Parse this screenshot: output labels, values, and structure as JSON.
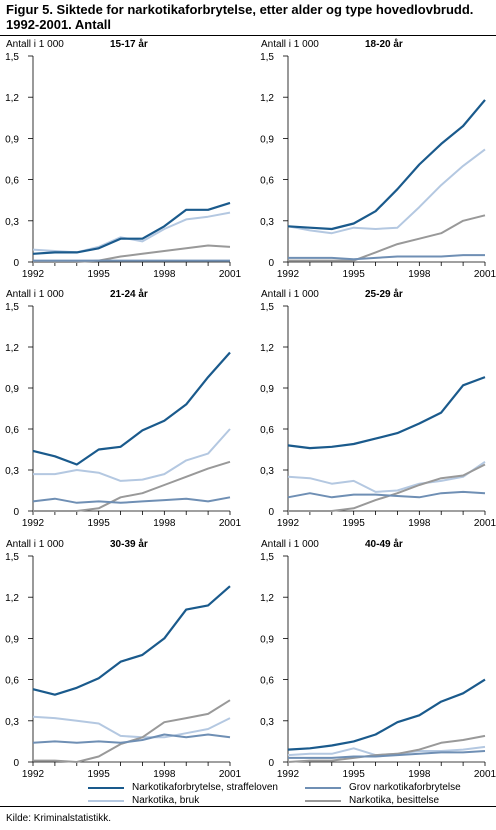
{
  "title": "Figur 5. Siktede for narkotikaforbrytelse, etter alder og type hovedlovbrudd. 1992-2001. Antall",
  "source": "Kilde: Kriminalstatistikk.",
  "colors": {
    "straffeloven": "#1a5a8c",
    "grov": "#6f8fb4",
    "bruk": "#b4c8e1",
    "besittelse": "#999999"
  },
  "legend": [
    {
      "key": "straffeloven",
      "label": "Narkotikaforbrytelse, straffeloven"
    },
    {
      "key": "grov",
      "label": "Grov narkotikaforbrytelse"
    },
    {
      "key": "bruk",
      "label": "Narkotika, bruk"
    },
    {
      "key": "besittelse",
      "label": "Narkotika, besittelse"
    }
  ],
  "chart_data": [
    {
      "type": "line",
      "title": "15-17 år",
      "ylabel": "Antall i 1 000",
      "x": [
        1992,
        1993,
        1994,
        1995,
        1996,
        1997,
        1998,
        1999,
        2000,
        2001
      ],
      "xticks": [
        "1992",
        "1995",
        "1998",
        "2001"
      ],
      "yticks": [
        "0",
        "0,3",
        "0,6",
        "0,9",
        "1,2",
        "1,5"
      ],
      "ylim": [
        0,
        1.5
      ],
      "series": [
        {
          "key": "straffeloven",
          "name": "Narkotikaforbrytelse, straffeloven",
          "values": [
            0.06,
            0.07,
            0.07,
            0.1,
            0.17,
            0.17,
            0.26,
            0.38,
            0.38,
            0.43
          ]
        },
        {
          "key": "grov",
          "name": "Grov narkotikaforbrytelse",
          "values": [
            0.01,
            0.01,
            0.01,
            0.01,
            0.01,
            0.01,
            0.01,
            0.01,
            0.01,
            0.01
          ]
        },
        {
          "key": "bruk",
          "name": "Narkotika, bruk",
          "values": [
            0.09,
            0.08,
            0.07,
            0.11,
            0.18,
            0.15,
            0.24,
            0.31,
            0.33,
            0.36
          ]
        },
        {
          "key": "besittelse",
          "name": "Narkotika, besittelse",
          "values": [
            0.0,
            0.0,
            0.0,
            0.01,
            0.04,
            0.06,
            0.08,
            0.1,
            0.12,
            0.11
          ]
        }
      ]
    },
    {
      "type": "line",
      "title": "18-20 år",
      "ylabel": "Antall i 1 000",
      "x": [
        1992,
        1993,
        1994,
        1995,
        1996,
        1997,
        1998,
        1999,
        2000,
        2001
      ],
      "xticks": [
        "1992",
        "1995",
        "1998",
        "2001"
      ],
      "yticks": [
        "0",
        "0,3",
        "0,6",
        "0,9",
        "1,2",
        "1,5"
      ],
      "ylim": [
        0,
        1.5
      ],
      "series": [
        {
          "key": "straffeloven",
          "name": "Narkotikaforbrytelse, straffeloven",
          "values": [
            0.26,
            0.25,
            0.24,
            0.28,
            0.37,
            0.53,
            0.71,
            0.86,
            0.99,
            1.18
          ]
        },
        {
          "key": "grov",
          "name": "Grov narkotikaforbrytelse",
          "values": [
            0.03,
            0.03,
            0.03,
            0.02,
            0.03,
            0.04,
            0.04,
            0.04,
            0.05,
            0.05
          ]
        },
        {
          "key": "bruk",
          "name": "Narkotika, bruk",
          "values": [
            0.26,
            0.23,
            0.21,
            0.25,
            0.24,
            0.25,
            0.4,
            0.56,
            0.7,
            0.82
          ]
        },
        {
          "key": "besittelse",
          "name": "Narkotika, besittelse",
          "values": [
            0.01,
            0.01,
            0.01,
            0.01,
            0.07,
            0.13,
            0.17,
            0.21,
            0.3,
            0.34
          ]
        }
      ]
    },
    {
      "type": "line",
      "title": "21-24 år",
      "ylabel": "Antall i 1 000",
      "x": [
        1992,
        1993,
        1994,
        1995,
        1996,
        1997,
        1998,
        1999,
        2000,
        2001
      ],
      "xticks": [
        "1992",
        "1995",
        "1998",
        "2001"
      ],
      "yticks": [
        "0",
        "0,3",
        "0,6",
        "0,9",
        "1,2",
        "1,5"
      ],
      "ylim": [
        0,
        1.5
      ],
      "series": [
        {
          "key": "straffeloven",
          "name": "Narkotikaforbrytelse, straffeloven",
          "values": [
            0.44,
            0.4,
            0.34,
            0.45,
            0.47,
            0.59,
            0.66,
            0.78,
            0.98,
            1.16
          ]
        },
        {
          "key": "grov",
          "name": "Grov narkotikaforbrytelse",
          "values": [
            0.07,
            0.09,
            0.06,
            0.07,
            0.06,
            0.07,
            0.08,
            0.09,
            0.07,
            0.1
          ]
        },
        {
          "key": "bruk",
          "name": "Narkotika, bruk",
          "values": [
            0.27,
            0.27,
            0.3,
            0.28,
            0.22,
            0.23,
            0.27,
            0.37,
            0.42,
            0.6
          ]
        },
        {
          "key": "besittelse",
          "name": "Narkotika, besittelse",
          "values": [
            0.0,
            0.0,
            0.0,
            0.02,
            0.1,
            0.13,
            0.19,
            0.25,
            0.31,
            0.36
          ]
        }
      ]
    },
    {
      "type": "line",
      "title": "25-29 år",
      "ylabel": "Antall i 1 000",
      "x": [
        1992,
        1993,
        1994,
        1995,
        1996,
        1997,
        1998,
        1999,
        2000,
        2001
      ],
      "xticks": [
        "1992",
        "1995",
        "1998",
        "2001"
      ],
      "yticks": [
        "0",
        "0,3",
        "0,6",
        "0,9",
        "1,2",
        "1,5"
      ],
      "ylim": [
        0,
        1.5
      ],
      "series": [
        {
          "key": "straffeloven",
          "name": "Narkotikaforbrytelse, straffeloven",
          "values": [
            0.48,
            0.46,
            0.47,
            0.49,
            0.53,
            0.57,
            0.64,
            0.72,
            0.92,
            0.98
          ]
        },
        {
          "key": "grov",
          "name": "Grov narkotikaforbrytelse",
          "values": [
            0.1,
            0.13,
            0.1,
            0.12,
            0.12,
            0.11,
            0.1,
            0.13,
            0.14,
            0.13
          ]
        },
        {
          "key": "bruk",
          "name": "Narkotika, bruk",
          "values": [
            0.25,
            0.24,
            0.2,
            0.22,
            0.14,
            0.15,
            0.2,
            0.22,
            0.25,
            0.36
          ]
        },
        {
          "key": "besittelse",
          "name": "Narkotika, besittelse",
          "values": [
            0.0,
            0.0,
            0.0,
            0.02,
            0.08,
            0.13,
            0.19,
            0.24,
            0.26,
            0.34
          ]
        }
      ]
    },
    {
      "type": "line",
      "title": "30-39 år",
      "ylabel": "Antall i 1 000",
      "x": [
        1992,
        1993,
        1994,
        1995,
        1996,
        1997,
        1998,
        1999,
        2000,
        2001
      ],
      "xticks": [
        "1992",
        "1995",
        "1998",
        "2001"
      ],
      "yticks": [
        "0",
        "0,3",
        "0,6",
        "0,9",
        "1,2",
        "1,5"
      ],
      "ylim": [
        0,
        1.5
      ],
      "series": [
        {
          "key": "straffeloven",
          "name": "Narkotikaforbrytelse, straffeloven",
          "values": [
            0.53,
            0.49,
            0.54,
            0.61,
            0.73,
            0.78,
            0.9,
            1.11,
            1.14,
            1.28
          ]
        },
        {
          "key": "grov",
          "name": "Grov narkotikaforbrytelse",
          "values": [
            0.14,
            0.15,
            0.14,
            0.15,
            0.14,
            0.16,
            0.2,
            0.18,
            0.2,
            0.18
          ]
        },
        {
          "key": "bruk",
          "name": "Narkotika, bruk",
          "values": [
            0.33,
            0.32,
            0.3,
            0.28,
            0.19,
            0.18,
            0.18,
            0.21,
            0.24,
            0.32
          ]
        },
        {
          "key": "besittelse",
          "name": "Narkotika, besittelse",
          "values": [
            0.01,
            0.01,
            0.0,
            0.04,
            0.13,
            0.18,
            0.29,
            0.32,
            0.35,
            0.45
          ]
        }
      ]
    },
    {
      "type": "line",
      "title": "40-49 år",
      "ylabel": "Antall i 1 000",
      "x": [
        1992,
        1993,
        1994,
        1995,
        1996,
        1997,
        1998,
        1999,
        2000,
        2001
      ],
      "xticks": [
        "1992",
        "1995",
        "1998",
        "2001"
      ],
      "yticks": [
        "0",
        "0,3",
        "0,6",
        "0,9",
        "1,2",
        "1,5"
      ],
      "ylim": [
        0,
        1.5
      ],
      "series": [
        {
          "key": "straffeloven",
          "name": "Narkotikaforbrytelse, straffeloven",
          "values": [
            0.09,
            0.1,
            0.12,
            0.15,
            0.2,
            0.29,
            0.34,
            0.44,
            0.5,
            0.6
          ]
        },
        {
          "key": "grov",
          "name": "Grov narkotikaforbrytelse",
          "values": [
            0.03,
            0.03,
            0.03,
            0.04,
            0.04,
            0.05,
            0.06,
            0.07,
            0.07,
            0.08
          ]
        },
        {
          "key": "bruk",
          "name": "Narkotika, bruk",
          "values": [
            0.05,
            0.06,
            0.06,
            0.1,
            0.05,
            0.06,
            0.08,
            0.08,
            0.09,
            0.11
          ]
        },
        {
          "key": "besittelse",
          "name": "Narkotika, besittelse",
          "values": [
            0.0,
            0.01,
            0.01,
            0.03,
            0.05,
            0.06,
            0.09,
            0.14,
            0.16,
            0.19
          ]
        }
      ]
    }
  ]
}
